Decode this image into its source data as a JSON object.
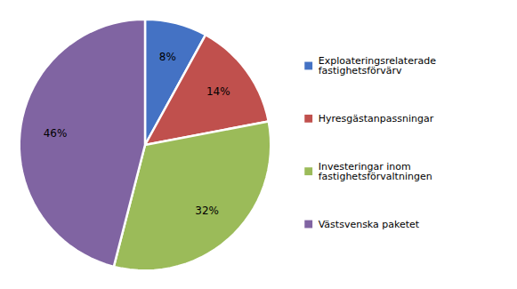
{
  "chart_data": {
    "type": "pie",
    "categories": [
      "Exploateringsrelaterade\nfastighetsförvärv",
      "Hyresgästanpassningar",
      "Investeringar inom\nfastighetsförvaltningen",
      "Västsvenska paketet"
    ],
    "values": [
      8,
      14,
      32,
      46
    ],
    "value_labels": [
      "8%",
      "14%",
      "32%",
      "46%"
    ],
    "colors": [
      "#4472C4",
      "#C0504D",
      "#9BBB59",
      "#8064A2"
    ],
    "data_labels": true,
    "legend": "right"
  }
}
